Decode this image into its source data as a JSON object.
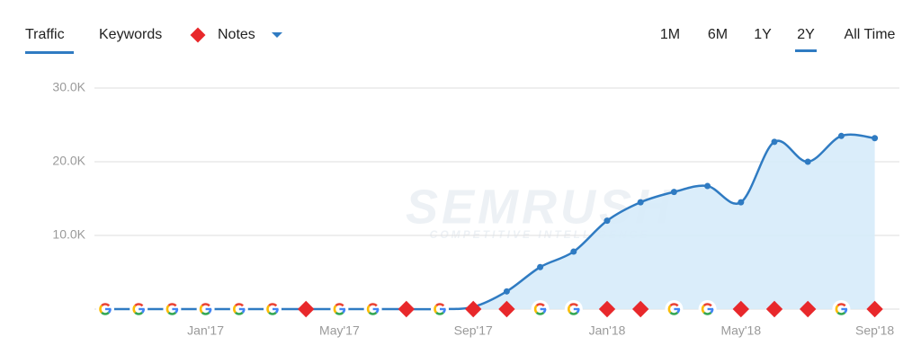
{
  "header": {
    "tabs": [
      "Traffic",
      "Keywords",
      "Notes"
    ],
    "active_tab": 0,
    "ranges": [
      "1M",
      "6M",
      "1Y",
      "2Y",
      "All Time"
    ],
    "active_range": 3
  },
  "chart_data": {
    "type": "line",
    "watermark": "SEMRUSH",
    "watermark_sub": "COMPETITIVE INTELLIGENCE",
    "categories": [
      null,
      null,
      null,
      "Jan'17",
      null,
      null,
      null,
      "May'17",
      null,
      null,
      null,
      "Sep'17",
      null,
      null,
      null,
      "Jan'18",
      null,
      null,
      null,
      "May'18",
      null,
      null,
      null,
      "Sep'18"
    ],
    "series": [
      {
        "name": "Traffic",
        "color": "#2f7bc2",
        "values": [
          0,
          0,
          0,
          0,
          0,
          0,
          0,
          0,
          0,
          0,
          0,
          300,
          2400,
          5700,
          7800,
          12000,
          14500,
          15900,
          16700,
          14500,
          22700,
          20000,
          23500,
          23200
        ]
      }
    ],
    "ylim": [
      0,
      30000
    ],
    "yticks": [
      {
        "value": 10000,
        "label": "10.0K"
      },
      {
        "value": 20000,
        "label": "20.0K"
      },
      {
        "value": 30000,
        "label": "30.0K"
      }
    ],
    "grid": true
  }
}
